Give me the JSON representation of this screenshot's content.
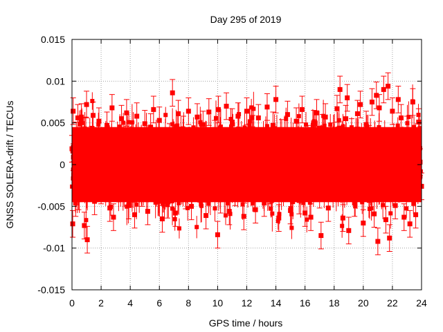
{
  "chart_data": {
    "type": "scatter",
    "title": "Day 295 of 2019",
    "xlabel": "GPS time / hours",
    "ylabel": "GNSS SOLERA-drift / TECUs",
    "xlim": [
      0,
      24
    ],
    "ylim": [
      -0.015,
      0.015
    ],
    "x_ticks": [
      0,
      2,
      4,
      6,
      8,
      10,
      12,
      14,
      16,
      18,
      20,
      22,
      24
    ],
    "x_tick_labels": [
      "0",
      "2",
      "4",
      "6",
      "8",
      "10",
      "12",
      "14",
      "16",
      "18",
      "20",
      "22",
      "24"
    ],
    "y_ticks": [
      -0.015,
      -0.01,
      -0.005,
      0,
      0.005,
      0.01,
      0.015
    ],
    "y_tick_labels": [
      "-0.015",
      "-0.01",
      "-0.005",
      "0",
      "0.005",
      "0.01",
      "0.015"
    ],
    "grid": true,
    "color": "#ff0000",
    "marker": "square",
    "error_bars": true,
    "typical_error": 0.0016,
    "points": [
      [
        0.0,
        0.0019
      ],
      [
        0.05,
        -0.0071
      ],
      [
        0.08,
        0.0064
      ],
      [
        0.1,
        0.0009
      ],
      [
        0.12,
        -0.0012
      ],
      [
        0.2,
        0.0021
      ],
      [
        0.25,
        -0.0046
      ],
      [
        0.3,
        0.0035
      ],
      [
        0.4,
        0.0056
      ],
      [
        0.45,
        -0.0038
      ],
      [
        0.55,
        0.0011
      ],
      [
        0.65,
        0.0057
      ],
      [
        0.75,
        -0.0022
      ],
      [
        0.85,
        -0.0073
      ],
      [
        0.95,
        0.0041
      ],
      [
        1.0,
        0.0072
      ],
      [
        1.05,
        -0.009
      ],
      [
        1.2,
        -0.0015
      ],
      [
        1.35,
        0.003
      ],
      [
        1.45,
        0.0059
      ],
      [
        1.55,
        -0.0044
      ],
      [
        1.7,
        0.0009
      ],
      [
        1.85,
        0.0052
      ],
      [
        2.0,
        -0.0031
      ],
      [
        2.2,
        0.0018
      ],
      [
        2.4,
        0.0047
      ],
      [
        2.6,
        -0.0052
      ],
      [
        2.75,
        0.0068
      ],
      [
        2.85,
        -0.0063
      ],
      [
        3.0,
        0.0024
      ],
      [
        3.2,
        -0.0027
      ],
      [
        3.4,
        0.0055
      ],
      [
        3.6,
        -0.0011
      ],
      [
        3.75,
        0.0062
      ],
      [
        3.9,
        -0.0049
      ],
      [
        4.1,
        0.0036
      ],
      [
        4.3,
        -0.006
      ],
      [
        4.45,
        0.0058
      ],
      [
        4.65,
        0.0013
      ],
      [
        4.8,
        -0.0034
      ],
      [
        5.0,
        0.0049
      ],
      [
        5.2,
        -0.0056
      ],
      [
        5.4,
        0.0045
      ],
      [
        5.6,
        0.0066
      ],
      [
        5.8,
        -0.0021
      ],
      [
        6.0,
        0.0053
      ],
      [
        6.2,
        -0.0065
      ],
      [
        6.35,
        0.0027
      ],
      [
        6.55,
        -0.0048
      ],
      [
        6.7,
        0.0033
      ],
      [
        6.9,
        0.0086
      ],
      [
        7.1,
        -0.0058
      ],
      [
        7.3,
        0.0061
      ],
      [
        7.45,
        -0.0012
      ],
      [
        7.65,
        0.0042
      ],
      [
        7.8,
        -0.0037
      ],
      [
        8.0,
        0.0064
      ],
      [
        8.2,
        -0.005
      ],
      [
        8.4,
        0.0019
      ],
      [
        8.6,
        0.0057
      ],
      [
        8.8,
        -0.0029
      ],
      [
        9.0,
        0.0048
      ],
      [
        9.2,
        -0.0061
      ],
      [
        9.4,
        0.0063
      ],
      [
        9.6,
        -0.0018
      ],
      [
        9.8,
        0.0037
      ],
      [
        10.0,
        -0.0084
      ],
      [
        10.05,
        0.0066
      ],
      [
        10.2,
        -0.0042
      ],
      [
        10.4,
        0.0025
      ],
      [
        10.6,
        0.007
      ],
      [
        10.8,
        -0.0056
      ],
      [
        11.0,
        0.0051
      ],
      [
        11.2,
        -0.0033
      ],
      [
        11.4,
        0.0058
      ],
      [
        11.6,
        0.0015
      ],
      [
        11.8,
        -0.0062
      ],
      [
        12.0,
        0.0064
      ],
      [
        12.2,
        -0.0026
      ],
      [
        12.4,
        0.0043
      ],
      [
        12.6,
        -0.0054
      ],
      [
        12.8,
        0.0056
      ],
      [
        13.0,
        0.0009
      ],
      [
        13.2,
        -0.0046
      ],
      [
        13.4,
        0.0069
      ],
      [
        13.6,
        -0.0031
      ],
      [
        13.8,
        0.0047
      ],
      [
        14.0,
        0.0078
      ],
      [
        14.2,
        -0.0064
      ],
      [
        14.4,
        0.0038
      ],
      [
        14.6,
        -0.002
      ],
      [
        14.8,
        0.006
      ],
      [
        15.0,
        -0.0055
      ],
      [
        15.2,
        0.0027
      ],
      [
        15.4,
        0.0052
      ],
      [
        15.6,
        -0.0043
      ],
      [
        15.8,
        0.0066
      ],
      [
        16.0,
        -0.0058
      ],
      [
        16.2,
        0.0031
      ],
      [
        16.4,
        -0.0063
      ],
      [
        16.6,
        0.0049
      ],
      [
        16.8,
        0.0062
      ],
      [
        17.0,
        -0.0036
      ],
      [
        17.1,
        -0.0085
      ],
      [
        17.2,
        0.0044
      ],
      [
        17.4,
        0.0057
      ],
      [
        17.6,
        -0.0052
      ],
      [
        17.8,
        0.0034
      ],
      [
        18.0,
        -0.0017
      ],
      [
        18.2,
        0.0067
      ],
      [
        18.4,
        0.009
      ],
      [
        18.6,
        -0.0064
      ],
      [
        18.8,
        0.0055
      ],
      [
        18.9,
        0.008
      ],
      [
        19.0,
        -0.0079
      ],
      [
        19.2,
        0.0039
      ],
      [
        19.4,
        -0.0046
      ],
      [
        19.6,
        0.0061
      ],
      [
        19.8,
        0.0072
      ],
      [
        20.0,
        -0.007
      ],
      [
        20.2,
        0.0048
      ],
      [
        20.4,
        0.0031
      ],
      [
        20.6,
        0.0075
      ],
      [
        20.75,
        -0.0059
      ],
      [
        20.9,
        0.0083
      ],
      [
        21.0,
        -0.0092
      ],
      [
        21.1,
        0.0068
      ],
      [
        21.2,
        0.0024
      ],
      [
        21.4,
        0.009
      ],
      [
        21.55,
        -0.0066
      ],
      [
        21.7,
        0.0094
      ],
      [
        21.8,
        -0.0088
      ],
      [
        22.0,
        0.0064
      ],
      [
        22.2,
        -0.0049
      ],
      [
        22.4,
        0.0078
      ],
      [
        22.6,
        0.0056
      ],
      [
        22.8,
        -0.0063
      ],
      [
        23.0,
        0.0042
      ],
      [
        23.2,
        -0.0071
      ],
      [
        23.4,
        0.0075
      ],
      [
        23.6,
        -0.006
      ],
      [
        23.8,
        0.0051
      ],
      [
        23.9,
        0.0003
      ],
      [
        24.0,
        -0.0026
      ]
    ]
  }
}
